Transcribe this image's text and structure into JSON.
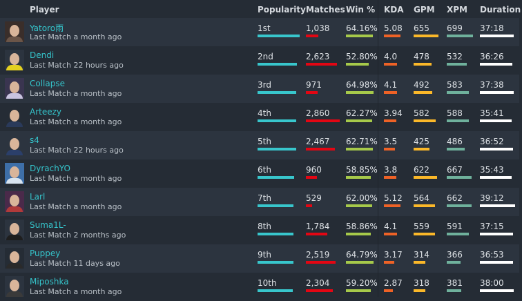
{
  "headers": {
    "player": "Player",
    "popularity": "Popularity",
    "matches": "Matches",
    "win": "Win %",
    "kda": "KDA",
    "gpm": "GPM",
    "xpm": "XPM",
    "duration": "Duration"
  },
  "colors": {
    "name": "#35c4cb",
    "popularity": "#38c6cc",
    "matches": "#e30613",
    "win": "#a6c94a",
    "kda": "#ee6226",
    "gpm": "#fbb829",
    "xpm": "#6fb19c",
    "duration": "#ffffff"
  },
  "players": [
    {
      "name": "Yatoro雨",
      "last": "Last Match a month ago",
      "popularity": "1st",
      "popularity_level": 1.0,
      "matches": "1,038",
      "win": "64.16%",
      "kda": "5.08",
      "gpm": "655",
      "xpm": "699",
      "duration": "37:18",
      "avatar": [
        "#3a2e2a",
        "#6b5548"
      ]
    },
    {
      "name": "Dendi",
      "last": "Last Match 22 hours ago",
      "popularity": "2nd",
      "popularity_level": 0.93,
      "matches": "2,623",
      "win": "52.80%",
      "kda": "4.0",
      "gpm": "478",
      "xpm": "532",
      "duration": "36:26",
      "avatar": [
        "#2c343f",
        "#e4d020"
      ]
    },
    {
      "name": "Collapse",
      "last": "Last Match a month ago",
      "popularity": "3rd",
      "popularity_level": 0.92,
      "matches": "971",
      "win": "64.98%",
      "kda": "4.1",
      "gpm": "492",
      "xpm": "583",
      "duration": "37:38",
      "avatar": [
        "#3a3550",
        "#c9c4e0"
      ]
    },
    {
      "name": "Arteezy",
      "last": "Last Match a month ago",
      "popularity": "4th",
      "popularity_level": 0.92,
      "matches": "2,860",
      "win": "62.27%",
      "kda": "3.94",
      "gpm": "582",
      "xpm": "588",
      "duration": "35:41",
      "avatar": [
        "#252c35",
        "#2a3a5a"
      ]
    },
    {
      "name": "s4",
      "last": "Last Match 22 hours ago",
      "popularity": "5th",
      "popularity_level": 0.92,
      "matches": "2,467",
      "win": "62.71%",
      "kda": "3.5",
      "gpm": "425",
      "xpm": "486",
      "duration": "36:52",
      "avatar": [
        "#2c343f",
        "#2b3f6a"
      ]
    },
    {
      "name": "DyrachYO",
      "last": "Last Match a month ago",
      "popularity": "6th",
      "popularity_level": 0.87,
      "matches": "960",
      "win": "58.85%",
      "kda": "3.8",
      "gpm": "622",
      "xpm": "667",
      "duration": "35:43",
      "avatar": [
        "#3e6fa8",
        "#d8e4f0"
      ]
    },
    {
      "name": "Larl",
      "last": "Last Match a month ago",
      "popularity": "7th",
      "popularity_level": 0.85,
      "matches": "529",
      "win": "62.00%",
      "kda": "5.12",
      "gpm": "564",
      "xpm": "662",
      "duration": "39:12",
      "avatar": [
        "#4a2a4a",
        "#b03a3a"
      ]
    },
    {
      "name": "Suma1L-",
      "last": "Last Match 2 months ago",
      "popularity": "8th",
      "popularity_level": 0.85,
      "matches": "1,784",
      "win": "58.86%",
      "kda": "4.1",
      "gpm": "559",
      "xpm": "591",
      "duration": "37:15",
      "avatar": [
        "#2c343f",
        "#1e1e1e"
      ]
    },
    {
      "name": "Puppey",
      "last": "Last Match 11 days ago",
      "popularity": "9th",
      "popularity_level": 0.85,
      "matches": "2,519",
      "win": "64.79%",
      "kda": "3.17",
      "gpm": "314",
      "xpm": "366",
      "duration": "36:53",
      "avatar": [
        "#252c35",
        "#2a2a2a"
      ]
    },
    {
      "name": "Miposhka",
      "last": "Last Match a month ago",
      "popularity": "10th",
      "popularity_level": 0.84,
      "matches": "2,304",
      "win": "59.20%",
      "kda": "2.87",
      "gpm": "318",
      "xpm": "381",
      "duration": "38:00",
      "avatar": [
        "#2c343f",
        "#3a3a3a"
      ]
    }
  ]
}
